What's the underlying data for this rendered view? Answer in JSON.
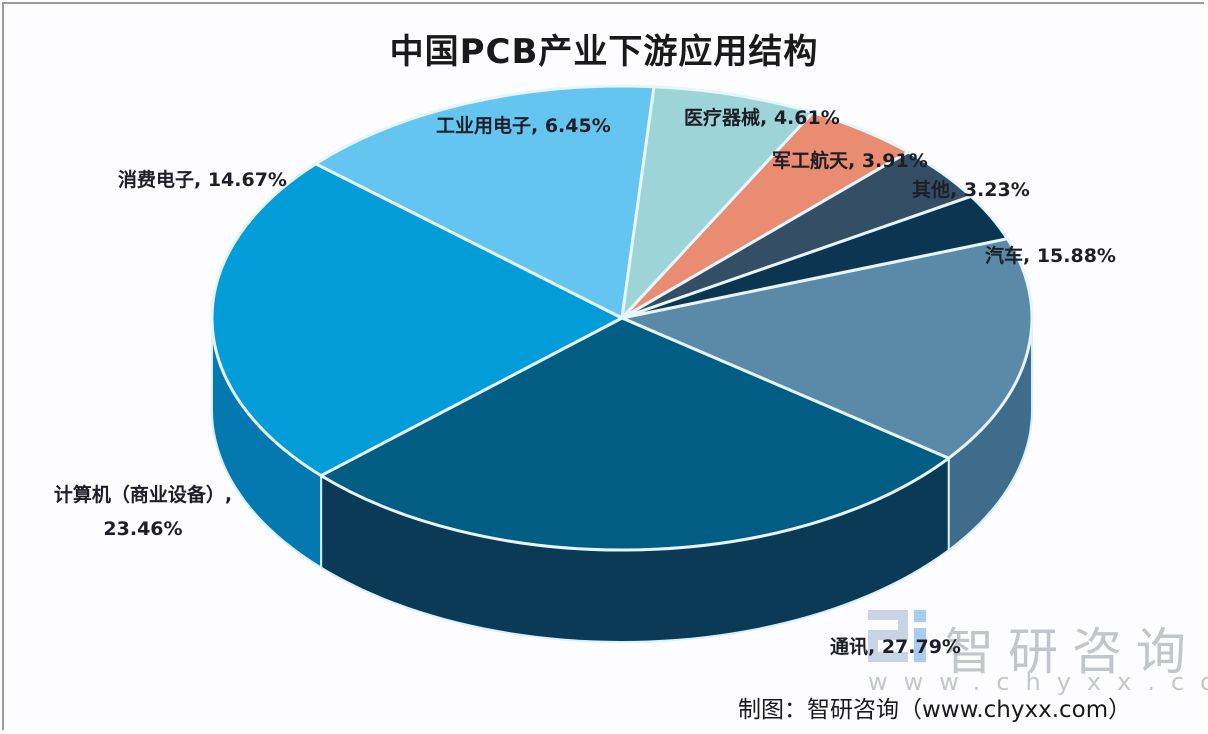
{
  "title": "中国PCB产业下游应用结构",
  "source": "制图：智研咨询（www.chyxx.com）",
  "watermark": {
    "brand": "智研咨询",
    "url": "www.chyxx.com"
  },
  "chart_data": {
    "type": "pie",
    "variant": "3d",
    "title": "中国PCB产业下游应用结构",
    "unit": "%",
    "legend": "none (data labels)",
    "slices": [
      {
        "label": "汽车",
        "value": 15.88,
        "color": "#5b8aa8",
        "side": "#3f6c8a",
        "text": "汽车, 15.88%"
      },
      {
        "label": "通讯",
        "value": 27.79,
        "color": "#025d85",
        "side": "#0b3a56",
        "text": "通讯, 27.79%"
      },
      {
        "label": "计算机（商业设备）",
        "value": 23.46,
        "color": "#029cd9",
        "side": "#0479b0",
        "text": "计算机（商业设备）, 23.46%"
      },
      {
        "label": "消费电子",
        "value": 14.67,
        "color": "#64c5f1",
        "side": "#3ea7d8",
        "text": "消费电子, 14.67%"
      },
      {
        "label": "工业用电子",
        "value": 6.45,
        "color": "#9dd4d7",
        "side": "#7ab7bb",
        "text": "工业用电子, 6.45%"
      },
      {
        "label": "医疗器械",
        "value": 4.61,
        "color": "#e98c72",
        "side": "#c76c54",
        "text": "医疗器械, 4.61%"
      },
      {
        "label": "军工航天",
        "value": 3.91,
        "color": "#344f65",
        "side": "#223748",
        "text": "军工航天, 3.91%"
      },
      {
        "label": "其他",
        "value": 3.23,
        "color": "#0c3552",
        "side": "#072338",
        "text": "其他, 3.23%"
      }
    ]
  },
  "labels": {
    "auto": "汽车, 15.88%",
    "comm": "通讯, 27.79%",
    "computer": "计算机（商业设备）, 23.46%",
    "consumer": "消费电子, 14.67%",
    "industrial": "工业用电子, 6.45%",
    "medical": "医疗器械, 4.61%",
    "military": "军工航天, 3.91%",
    "other": "其他, 3.23%"
  }
}
